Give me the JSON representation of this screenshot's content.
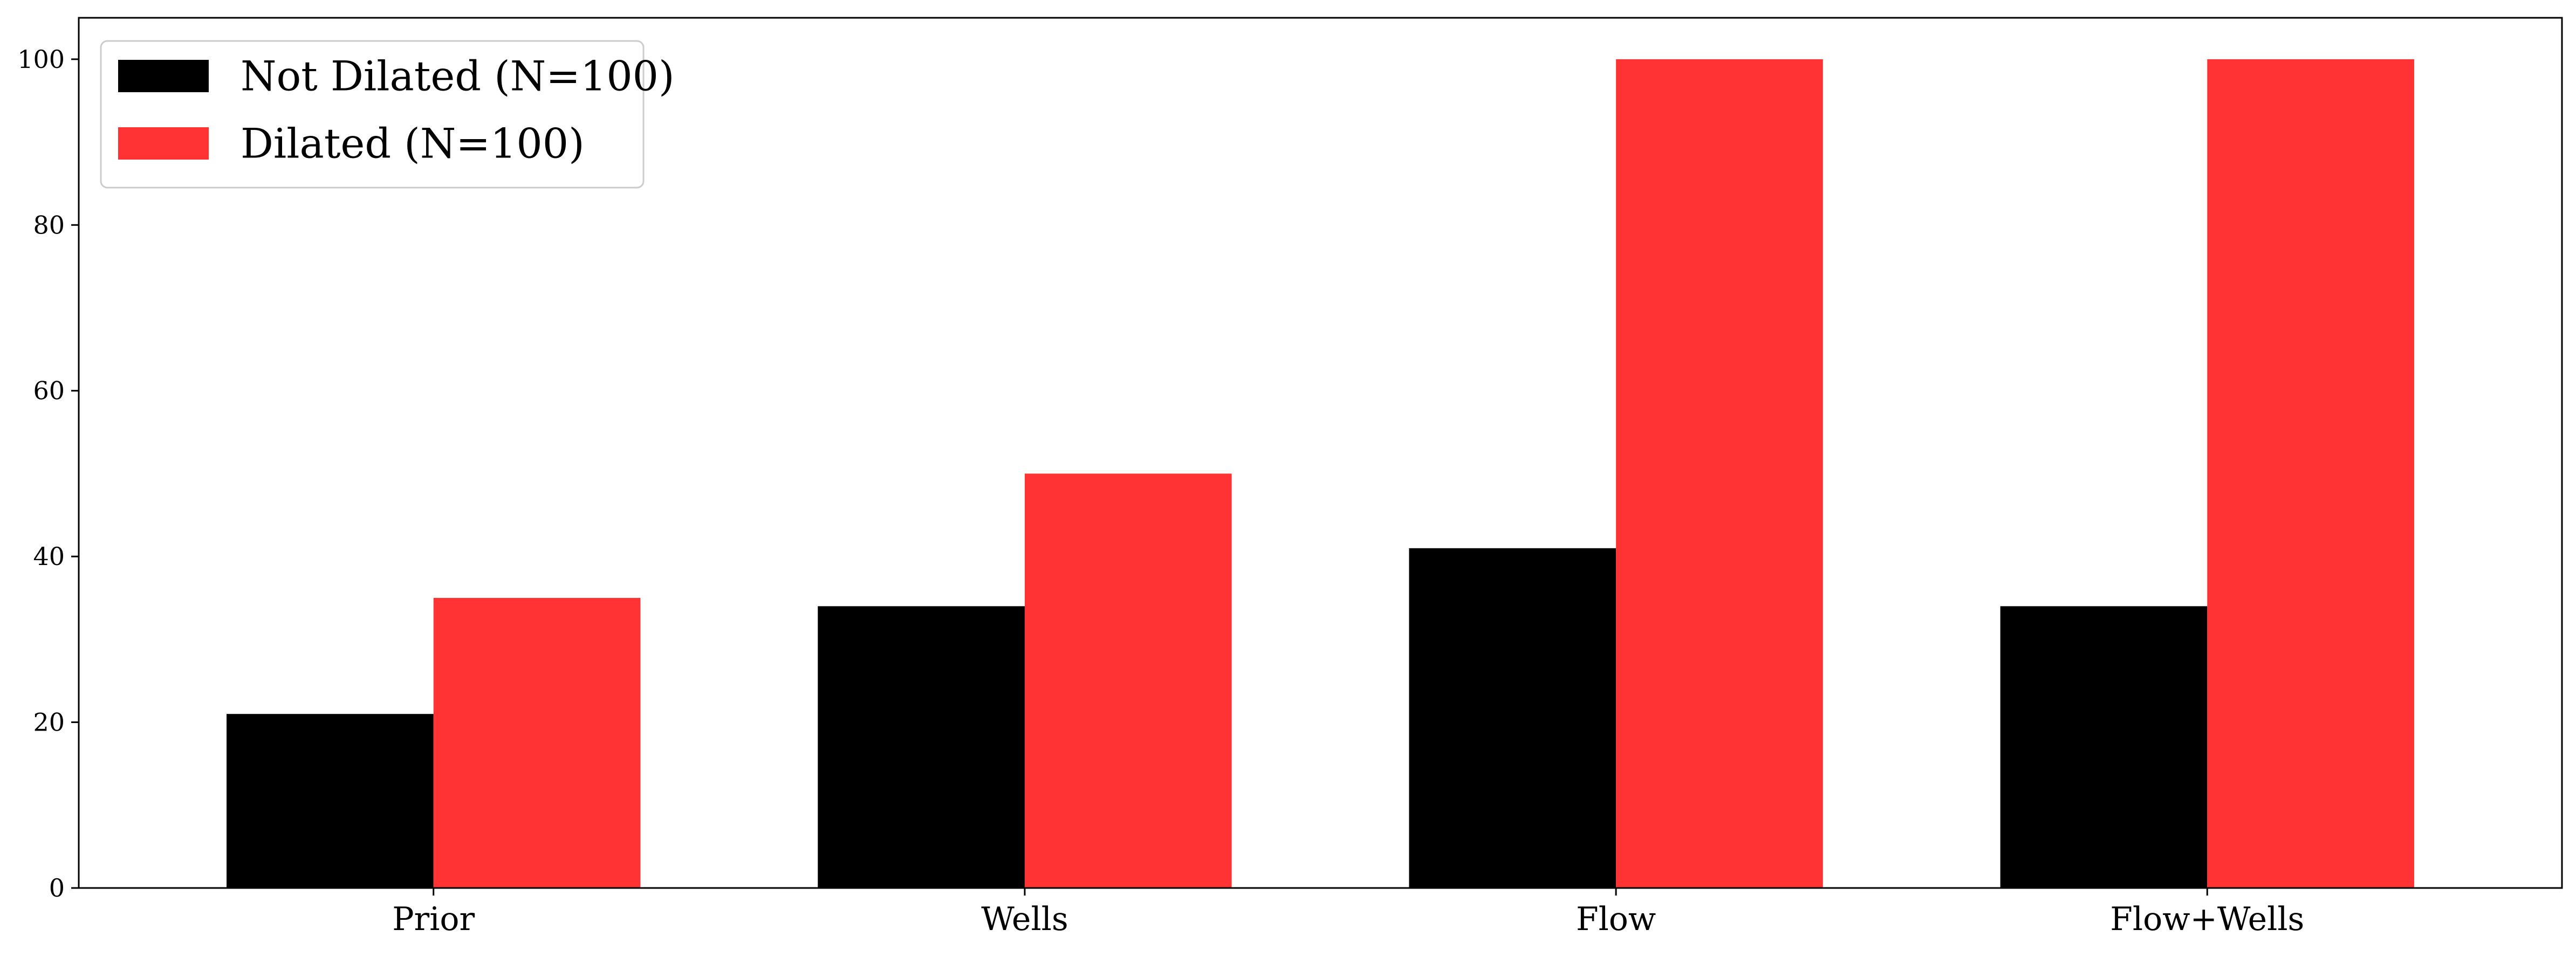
{
  "chart_data": {
    "type": "bar",
    "categories": [
      "Prior",
      "Wells",
      "Flow",
      "Flow+Wells"
    ],
    "series": [
      {
        "name": "Not Dilated (N=100)",
        "color": "#000000",
        "values": [
          21,
          34,
          41,
          34
        ]
      },
      {
        "name": "Dilated (N=100)",
        "color": "#ff3333",
        "values": [
          35,
          50,
          100,
          100
        ]
      }
    ],
    "title": "",
    "xlabel": "",
    "ylabel": "",
    "ylim": [
      0,
      105
    ],
    "yticks": [
      0,
      20,
      40,
      60,
      80,
      100
    ],
    "grid": false,
    "legend_position": "top-left"
  }
}
